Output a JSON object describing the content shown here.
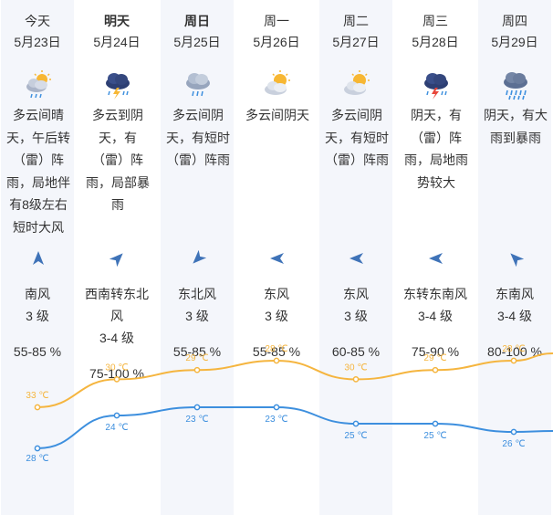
{
  "days": [
    {
      "day": "今天",
      "date": "5月23日",
      "icon": "partly-cloudy-rain-icon",
      "desc": "多云间晴天，午后转（雷）阵雨，局地伴有8级左右短时大风",
      "wind_dir": "南风",
      "wind_level": "3 级",
      "humidity": "55-85 %",
      "high": "33 ℃",
      "low": "28 ℃",
      "high_val": 33,
      "low_val": 28,
      "wind_deg": 0,
      "bold": false
    },
    {
      "day": "明天",
      "date": "5月24日",
      "icon": "thunderstorm-icon",
      "desc": "多云到阴天，有（雷）阵雨，局部暴雨",
      "wind_dir": "西南转东北风",
      "wind_level": "3-4 级",
      "humidity": "75-100 %",
      "high": "30 ℃",
      "low": "24 ℃",
      "high_val": 30,
      "low_val": 24,
      "wind_deg": 45,
      "bold": true
    },
    {
      "day": "周日",
      "date": "5月25日",
      "icon": "cloud-rain-icon",
      "desc": "多云间阴天，有短时（雷）阵雨",
      "wind_dir": "东北风",
      "wind_level": "3 级",
      "humidity": "55-85 %",
      "high": "29 ℃",
      "low": "23 ℃",
      "high_val": 29,
      "low_val": 23,
      "wind_deg": 225,
      "bold": true
    },
    {
      "day": "周一",
      "date": "5月26日",
      "icon": "partly-cloudy-icon",
      "desc": "多云间阴天",
      "wind_dir": "东风",
      "wind_level": "3 级",
      "humidity": "55-85 %",
      "high": "28 ℃",
      "low": "23 ℃",
      "high_val": 28,
      "low_val": 23,
      "wind_deg": 270,
      "bold": false
    },
    {
      "day": "周二",
      "date": "5月27日",
      "icon": "partly-cloudy-icon",
      "desc": "多云间阴天，有短时（雷）阵雨",
      "wind_dir": "东风",
      "wind_level": "3 级",
      "humidity": "60-85 %",
      "high": "30 ℃",
      "low": "25 ℃",
      "high_val": 30,
      "low_val": 25,
      "wind_deg": 270,
      "bold": false
    },
    {
      "day": "周三",
      "date": "5月28日",
      "icon": "thunderstorm-icon",
      "desc": "阴天，有（雷）阵雨，局地雨势较大",
      "wind_dir": "东转东南风",
      "wind_level": "3-4 级",
      "humidity": "75-90 %",
      "high": "29 ℃",
      "low": "25 ℃",
      "high_val": 29,
      "low_val": 25,
      "wind_deg": 270,
      "bold": false
    },
    {
      "day": "周四",
      "date": "5月29日",
      "icon": "heavy-rain-icon",
      "desc": "阴天，有大雨到暴雨",
      "wind_dir": "东南风",
      "wind_level": "3-4 级",
      "humidity": "80-100 %",
      "high": "28 ℃",
      "low": "26 ℃",
      "high_val": 28,
      "low_val": 26,
      "wind_deg": 315,
      "bold": false
    }
  ],
  "colors": {
    "high_line": "#f5b53f",
    "low_line": "#3d8fde",
    "wind_arrow": "#3f73b8",
    "shade": "#f4f6fb"
  }
}
